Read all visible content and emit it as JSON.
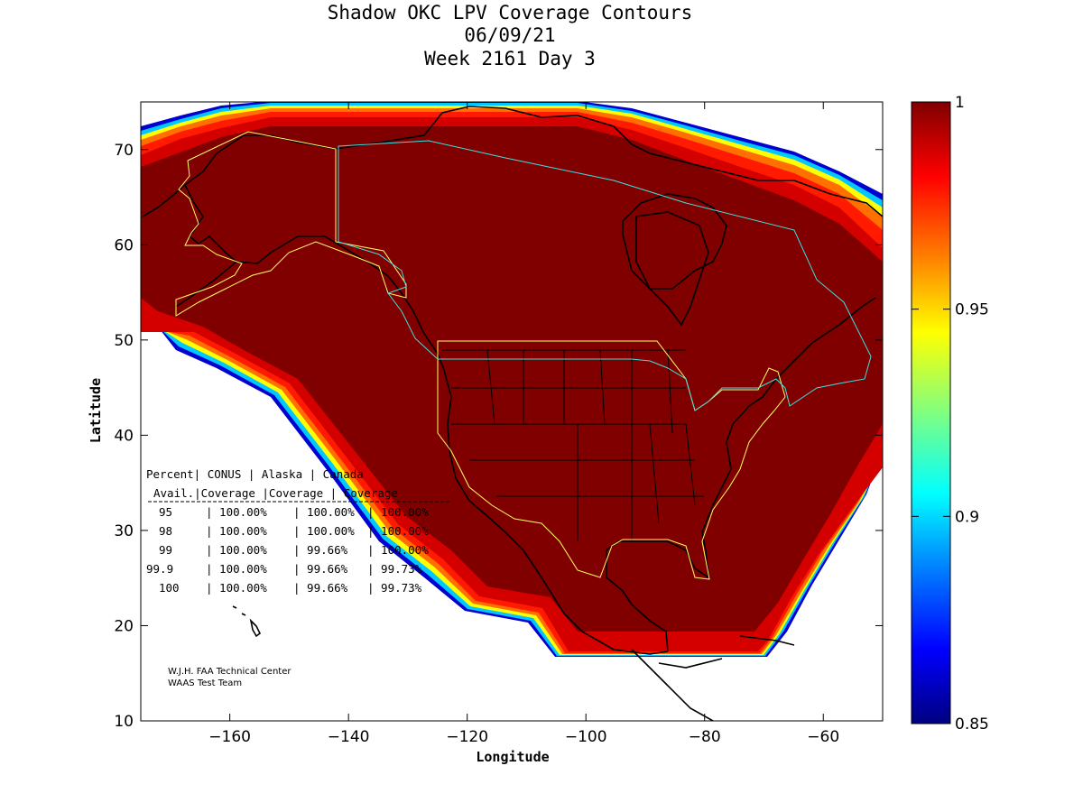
{
  "chart_data": {
    "type": "heatmap",
    "title": [
      "Shadow OKC LPV Coverage Contours",
      "06/09/21",
      "Week 2161 Day 3"
    ],
    "xlabel": "Longitude",
    "ylabel": "Latitude",
    "xlim": [
      -175,
      -50
    ],
    "ylim": [
      10,
      75
    ],
    "xticks": [
      -160,
      -140,
      -120,
      -100,
      -80,
      -60
    ],
    "yticks": [
      10,
      20,
      30,
      40,
      50,
      60,
      70
    ],
    "colorbar": {
      "range": [
        0.85,
        1
      ],
      "ticks": [
        0.85,
        0.9,
        0.95,
        1
      ],
      "tick_labels": [
        "0.85",
        "0.9",
        "0.95",
        "1"
      ],
      "colormap": [
        "#000080",
        "#0000ff",
        "#0080ff",
        "#00ffff",
        "#80ff80",
        "#ffff00",
        "#ff8000",
        "#ff0000",
        "#800000"
      ]
    },
    "coverage_table": {
      "header1": [
        "Percent",
        "CONUS",
        "Alaska",
        "Canada"
      ],
      "header2": [
        "Avail.",
        "Coverage",
        "Coverage",
        "Coverage"
      ],
      "rows": [
        [
          "95",
          "100.00%",
          "100.00%",
          "100.00%"
        ],
        [
          "98",
          "100.00%",
          "100.00%",
          "100.00%"
        ],
        [
          "99",
          "100.00%",
          "99.66%",
          "100.00%"
        ],
        [
          "99.9",
          "100.00%",
          "99.66%",
          "99.73%"
        ],
        [
          "100",
          "100.00%",
          "99.66%",
          "99.73%"
        ]
      ]
    },
    "credits": [
      "W.J.H. FAA Technical Center",
      "WAAS Test Team"
    ]
  }
}
